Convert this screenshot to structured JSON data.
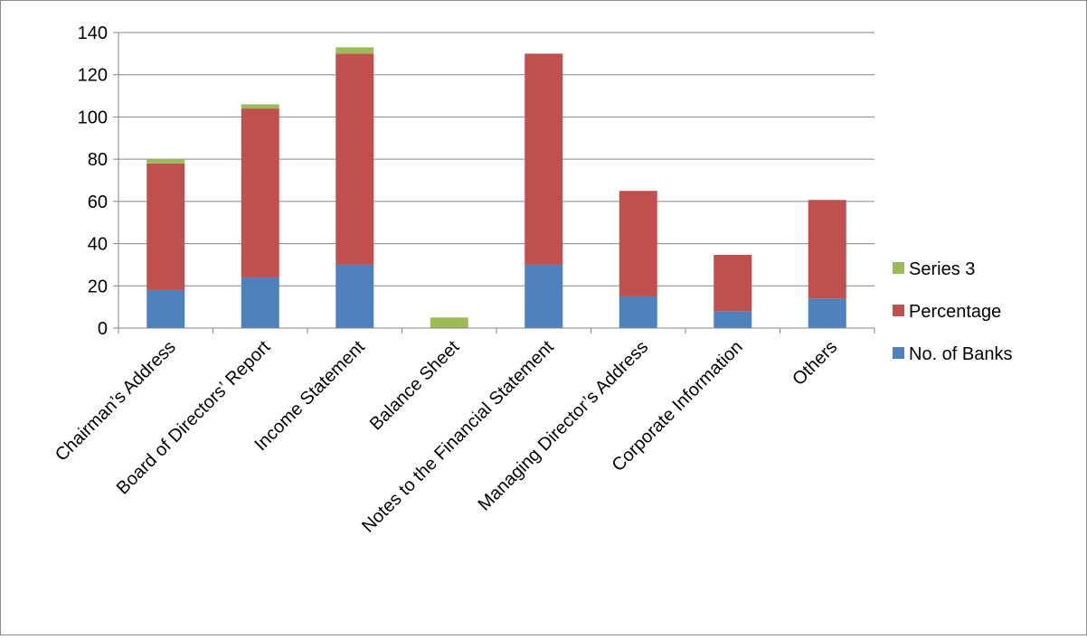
{
  "chart_data": {
    "type": "bar",
    "stacked": true,
    "categories": [
      "Chairman’s Address",
      "Board of Directors’ Report",
      "Income Statement",
      "Balance Sheet",
      "Notes to the Financial Statement",
      "Managing Director’s Address",
      "Corporate Information",
      "Others"
    ],
    "series": [
      {
        "name": "No. of Banks",
        "color": "#4f81bd",
        "values": [
          18,
          24,
          30,
          0,
          30,
          15,
          8,
          14
        ]
      },
      {
        "name": "Percentage",
        "color": "#c0504d",
        "values": [
          60,
          80,
          100,
          0,
          100,
          50,
          26.7,
          46.7
        ]
      },
      {
        "name": "Series 3",
        "color": "#9bbb59",
        "values": [
          2,
          2,
          3,
          5,
          0,
          0,
          0,
          0
        ]
      }
    ],
    "ylim": [
      0,
      140
    ],
    "yticks": [
      "0",
      "20",
      "40",
      "60",
      "80",
      "100",
      "120",
      "140"
    ],
    "grid": true,
    "legend_position": "right",
    "title": "",
    "xlabel": "",
    "ylabel": ""
  }
}
